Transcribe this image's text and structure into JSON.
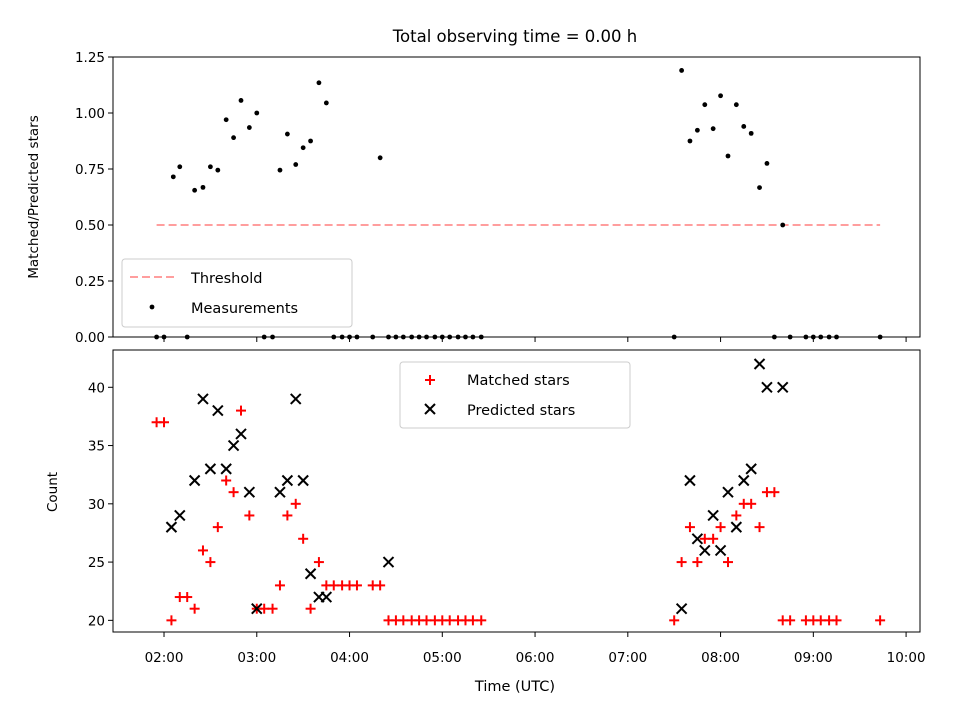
{
  "colors": {
    "threshold": "#ff7f7f",
    "measurement": "#000000",
    "matched": "#ff0000",
    "predicted": "#000000"
  },
  "chart_data": [
    {
      "type": "scatter",
      "title": "Total observing time = 0.00 h",
      "xlabel": "",
      "ylabel": "Matched/Predicted stars",
      "xlim": [
        1.45,
        10.15
      ],
      "ylim": [
        0,
        1.25
      ],
      "yticks": [
        "0.00",
        "0.25",
        "0.50",
        "0.75",
        "1.00",
        "1.25"
      ],
      "legend_position": "lower-left",
      "threshold": {
        "name": "Threshold",
        "value": 0.5,
        "x_range": [
          1.92,
          9.72
        ]
      },
      "series": [
        {
          "name": "Measurements",
          "x": [
            1.92,
            2.0,
            2.1,
            2.17,
            2.25,
            2.33,
            2.42,
            2.5,
            2.58,
            2.67,
            2.75,
            2.83,
            2.92,
            3.0,
            3.08,
            3.17,
            3.25,
            3.33,
            3.42,
            3.5,
            3.58,
            3.67,
            3.75,
            3.83,
            3.92,
            4.0,
            4.08,
            4.25,
            4.33,
            4.42,
            4.5,
            4.58,
            4.67,
            4.75,
            4.83,
            4.92,
            5.0,
            5.08,
            5.17,
            5.25,
            5.33,
            5.42,
            7.5,
            7.58,
            7.67,
            7.75,
            7.83,
            7.92,
            8.0,
            8.08,
            8.17,
            8.25,
            8.33,
            8.42,
            8.5,
            8.58,
            8.67,
            8.75,
            8.92,
            9.0,
            9.08,
            9.17,
            9.25,
            9.72
          ],
          "y": [
            0,
            0,
            0.715,
            0.76,
            0,
            0.655,
            0.668,
            0.76,
            0.745,
            0.97,
            0.89,
            1.056,
            0.935,
            1.0,
            0,
            0,
            0.745,
            0.906,
            0.77,
            0.845,
            0.875,
            1.135,
            1.045,
            0,
            0,
            0,
            0,
            0,
            0.8,
            0,
            0,
            0,
            0,
            0,
            0,
            0,
            0,
            0,
            0,
            0,
            0,
            0,
            0,
            1.19,
            0.875,
            0.923,
            1.037,
            0.93,
            1.077,
            0.808,
            1.037,
            0.94,
            0.909,
            0.667,
            0.775,
            0,
            0.5,
            0,
            0,
            0,
            0,
            0,
            0,
            0
          ]
        }
      ]
    },
    {
      "type": "scatter",
      "title": "",
      "xlabel": "Time (UTC)",
      "ylabel": "Count",
      "xlim": [
        1.45,
        10.15
      ],
      "ylim": [
        19,
        43.2
      ],
      "yticks": [
        "20",
        "25",
        "30",
        "35",
        "40"
      ],
      "xticks": [
        "02:00",
        "03:00",
        "04:00",
        "05:00",
        "06:00",
        "07:00",
        "08:00",
        "09:00",
        "10:00"
      ],
      "legend_position": "upper-center",
      "series": [
        {
          "name": "Matched stars",
          "x": [
            1.92,
            2.0,
            2.08,
            2.17,
            2.25,
            2.33,
            2.42,
            2.5,
            2.58,
            2.67,
            2.75,
            2.83,
            2.92,
            3.0,
            3.08,
            3.17,
            3.25,
            3.33,
            3.42,
            3.5,
            3.58,
            3.67,
            3.75,
            3.83,
            3.92,
            4.0,
            4.08,
            4.25,
            4.33,
            4.42,
            4.5,
            4.58,
            4.67,
            4.75,
            4.83,
            4.92,
            5.0,
            5.08,
            5.17,
            5.25,
            5.33,
            5.42,
            7.5,
            7.58,
            7.67,
            7.75,
            7.83,
            7.92,
            8.0,
            8.08,
            8.17,
            8.25,
            8.33,
            8.42,
            8.5,
            8.58,
            8.67,
            8.75,
            8.92,
            9.0,
            9.08,
            9.17,
            9.25,
            9.72
          ],
          "y": [
            37,
            37,
            20,
            22,
            22,
            21,
            26,
            25,
            28,
            32,
            31,
            38,
            29,
            21,
            21,
            21,
            23,
            29,
            30,
            27,
            21,
            25,
            23,
            23,
            23,
            23,
            23,
            23,
            23,
            20,
            20,
            20,
            20,
            20,
            20,
            20,
            20,
            20,
            20,
            20,
            20,
            20,
            20,
            25,
            28,
            25,
            27,
            27,
            28,
            25,
            29,
            30,
            30,
            28,
            31,
            31,
            20,
            20,
            20,
            20,
            20,
            20,
            20,
            20
          ]
        },
        {
          "name": "Predicted stars",
          "x": [
            2.08,
            2.17,
            2.33,
            2.42,
            2.5,
            2.58,
            2.67,
            2.75,
            2.83,
            2.92,
            3.0,
            3.25,
            3.33,
            3.42,
            3.5,
            3.58,
            3.67,
            3.75,
            4.42,
            7.58,
            7.67,
            7.75,
            7.83,
            7.92,
            8.0,
            8.08,
            8.17,
            8.25,
            8.33,
            8.42,
            8.5,
            8.67
          ],
          "y": [
            28,
            29,
            32,
            39,
            33,
            38,
            33,
            35,
            36,
            31,
            21,
            31,
            32,
            39,
            32,
            24,
            22,
            22,
            25,
            21,
            32,
            27,
            26,
            29,
            26,
            31,
            28,
            32,
            33,
            42,
            40,
            40
          ]
        }
      ]
    }
  ]
}
